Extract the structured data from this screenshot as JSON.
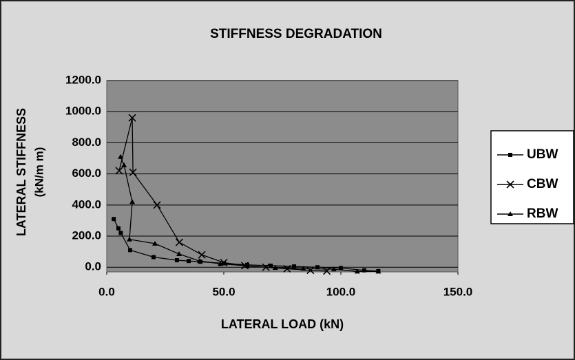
{
  "chart_data": {
    "type": "line",
    "title": "STIFFNESS DEGRADATION",
    "xlabel": "LATERAL LOAD (kN)",
    "ylabel": [
      "LATERAL STIFFNESS",
      "(kN/m m)"
    ],
    "xlim": [
      0,
      150
    ],
    "ylim": [
      -30,
      1200
    ],
    "xticks": [
      {
        "value": 0,
        "label": "0.0"
      },
      {
        "value": 50,
        "label": "50.0"
      },
      {
        "value": 100,
        "label": "100.0"
      },
      {
        "value": 150,
        "label": "150.0"
      }
    ],
    "yticks": [
      {
        "value": 0,
        "label": "0.0"
      },
      {
        "value": 200,
        "label": "200.0"
      },
      {
        "value": 400,
        "label": "400.0"
      },
      {
        "value": 600,
        "label": "600.0"
      },
      {
        "value": 800,
        "label": "800.0"
      },
      {
        "value": 1000,
        "label": "1000.0"
      },
      {
        "value": 1200,
        "label": "1200.0"
      }
    ],
    "grid": true,
    "plot_color": "#8c8c8c",
    "legend": "right",
    "series": [
      {
        "name": "UBW",
        "color": "#000000",
        "marker": "square",
        "x": [
          3,
          5,
          6,
          10,
          20,
          30,
          35,
          40,
          50,
          60,
          70,
          80,
          90,
          100,
          110,
          116
        ],
        "values": [
          310,
          250,
          220,
          110,
          65,
          45,
          40,
          35,
          25,
          15,
          10,
          5,
          0,
          -5,
          -20,
          -25
        ]
      },
      {
        "name": "CBW",
        "color": "#000000",
        "marker": "x",
        "x": [
          5.3,
          10.9,
          11.2,
          21.5,
          31,
          40.6,
          50,
          59,
          68,
          77,
          87,
          94
        ],
        "values": [
          620,
          960,
          610,
          400,
          160,
          80,
          30,
          10,
          0,
          -10,
          -20,
          -25
        ]
      },
      {
        "name": "RBW",
        "color": "#000000",
        "marker": "triangle",
        "x": [
          5.9,
          7.4,
          10.9,
          9.7,
          20.6,
          30.9,
          39.7,
          48.5,
          60,
          72,
          84,
          97,
          107,
          116
        ],
        "values": [
          710,
          656,
          420,
          179,
          152,
          85,
          40,
          22,
          9,
          -4,
          -9,
          -13,
          -27,
          -27
        ]
      }
    ]
  }
}
